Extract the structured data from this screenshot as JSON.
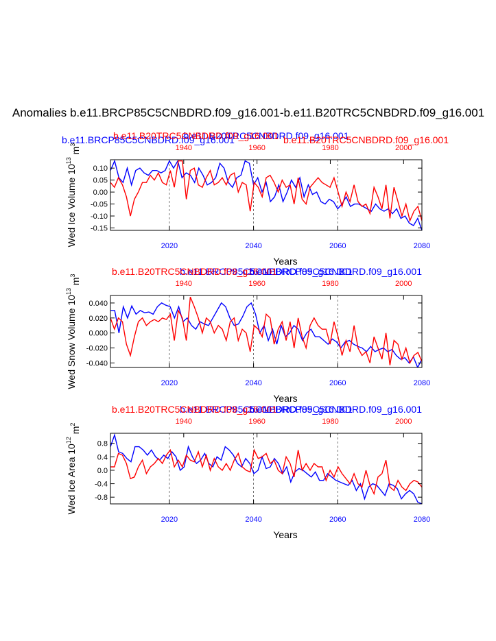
{
  "title": "Anomalies b.e11.BRCP85C5CNBDRD.f09_g16.001-b.e11.B20TRC5CNBDRD.f09_g16.001",
  "colors": {
    "rcp": "#0000ff",
    "hist": "#ff0000",
    "axis": "#000000"
  },
  "chart_data": [
    {
      "type": "line",
      "ylabel": "Wed Ice Volume 10",
      "ylabel_sup": "13",
      "ylabel_unit": " m",
      "ylabel_unit_sup": "3",
      "xlabel": "Years",
      "top_left_label": "b.e11.BRCP85C5CNBDRD.f09_g16.001",
      "top_center_label": "b.e11.B20TRC5CNBDRD.f09_g16.001",
      "top_right_label": "b.e11.B20TRC5CNBDRD.f09_g16.001",
      "bottom_axis": {
        "range": [
          2006,
          2080
        ],
        "ticks": [
          "2020",
          "2040",
          "2060",
          "2080"
        ]
      },
      "top_axis": {
        "range": [
          1920,
          2005
        ],
        "ticks": [
          "1940",
          "1960",
          "1980",
          "2000"
        ]
      },
      "ylim": [
        -0.16,
        0.135
      ],
      "yticks": [
        "0.10",
        "0.05",
        "0.00",
        "-0.05",
        "-0.10",
        "-0.15"
      ],
      "ytick_values": [
        0.1,
        0.05,
        0.0,
        -0.05,
        -0.1,
        -0.15
      ],
      "series": [
        {
          "values": [
            0.09,
            0.13,
            0.06,
            0.04,
            0.1,
            0.03,
            0.09,
            0.1,
            0.08,
            0.07,
            0.09,
            0.09,
            0.08,
            0.09,
            0.13,
            0.1,
            0.13,
            0.06,
            0.08,
            0.07,
            0.04,
            0.1,
            0.07,
            0.03,
            0.04,
            0.06,
            0.12,
            0.1,
            0.04,
            0.02,
            0.06,
            0.07,
            0.13,
            0.12,
            0.03,
            0.06,
            0.0,
            0.04,
            -0.04,
            -0.02,
            0.03,
            -0.04,
            0.0,
            0.05,
            0.02,
            0.06,
            -0.02,
            0.03,
            -0.01,
            0.0,
            -0.04,
            -0.05,
            -0.03,
            -0.04,
            -0.07,
            -0.05,
            -0.02,
            -0.06,
            -0.05,
            -0.05,
            -0.06,
            -0.07,
            -0.08,
            -0.05,
            -0.07,
            -0.08,
            -0.07,
            -0.09,
            -0.07,
            -0.11,
            -0.1,
            -0.13,
            -0.14,
            -0.11,
            -0.16
          ]
        },
        {
          "values": [
            0.04,
            0.02,
            0.06,
            0.03,
            -0.02,
            -0.1,
            -0.03,
            0.0,
            0.04,
            0.04,
            0.07,
            0.05,
            0.08,
            0.04,
            0.03,
            0.09,
            0.02,
            0.13,
            0.13,
            -0.03,
            0.09,
            0.1,
            0.03,
            0.02,
            0.06,
            0.09,
            0.03,
            0.04,
            0.06,
            0.03,
            0.07,
            0.08,
            0.0,
            0.04,
            0.03,
            -0.08,
            0.04,
            0.02,
            -0.02,
            0.06,
            0.07,
            0.04,
            0.0,
            0.05,
            0.02,
            0.03,
            -0.05,
            0.06,
            -0.03,
            -0.05,
            0.02,
            0.04,
            0.06,
            0.04,
            0.03,
            0.02,
            0.06,
            0.0,
            -0.06,
            0.0,
            -0.04,
            0.03,
            -0.04,
            -0.06,
            -0.05,
            -0.09,
            0.02,
            -0.02,
            -0.07,
            0.03,
            -0.11,
            0.02,
            -0.04,
            -0.1,
            -0.05,
            -0.12,
            -0.08,
            -0.06,
            -0.12
          ]
        }
      ]
    },
    {
      "type": "line",
      "ylabel": "Wed Snow Volume 10",
      "ylabel_sup": "13",
      "ylabel_unit": " m",
      "ylabel_unit_sup": "3",
      "xlabel": "Years",
      "top_left_label": "",
      "top_center_label": "b.e11.BRCP85C5CNBDRD.f09_g16.001",
      "top_right_label": "b.e11.B20TRC5CNBDRD.f09_g16.001",
      "bottom_axis": {
        "range": [
          2006,
          2080
        ],
        "ticks": [
          "2020",
          "2040",
          "2060",
          "2080"
        ]
      },
      "top_axis": {
        "range": [
          1920,
          2005
        ],
        "ticks": [
          "1940",
          "1960",
          "1980",
          "2000"
        ]
      },
      "ylim": [
        -0.046,
        0.05
      ],
      "yticks": [
        "0.040",
        "0.020",
        "0.000",
        "-0.020",
        "-0.040"
      ],
      "ytick_values": [
        0.04,
        0.02,
        0.0,
        -0.02,
        -0.04
      ],
      "series": [
        {
          "values": [
            0.03,
            0.03,
            0.0,
            0.035,
            0.02,
            0.036,
            0.025,
            0.03,
            0.027,
            0.028,
            0.025,
            0.035,
            0.04,
            0.037,
            0.035,
            0.02,
            0.035,
            0.015,
            0.02,
            0.01,
            0.005,
            0.015,
            0.012,
            0.01,
            0.02,
            0.03,
            0.04,
            0.035,
            0.02,
            0.01,
            0.012,
            0.022,
            0.035,
            0.04,
            0.025,
            0.0,
            0.01,
            -0.01,
            0.005,
            -0.015,
            0.01,
            -0.005,
            0.0,
            0.01,
            0.005,
            -0.01,
            0.0,
            0.005,
            -0.005,
            -0.005,
            -0.01,
            -0.015,
            -0.008,
            -0.012,
            -0.02,
            -0.012,
            -0.01,
            -0.015,
            -0.018,
            -0.02,
            -0.025,
            -0.018,
            -0.025,
            -0.022,
            -0.02,
            -0.025,
            -0.022,
            -0.03,
            -0.035,
            -0.033,
            -0.04,
            -0.032,
            -0.046,
            -0.035
          ]
        },
        {
          "values": [
            0.02,
            0.005,
            0.02,
            0.015,
            -0.015,
            -0.03,
            -0.005,
            0.015,
            0.02,
            0.01,
            0.015,
            0.018,
            0.015,
            0.02,
            0.018,
            0.025,
            -0.01,
            0.03,
            0.02,
            -0.01,
            0.048,
            0.035,
            0.02,
            0.0,
            0.02,
            0.015,
            0.0,
            0.01,
            0.005,
            -0.01,
            0.015,
            0.02,
            -0.01,
            0.005,
            0.0,
            -0.025,
            0.01,
            0.005,
            -0.005,
            0.025,
            0.02,
            -0.015,
            0.005,
            0.015,
            -0.01,
            0.015,
            -0.02,
            0.02,
            -0.005,
            -0.02,
            0.01,
            0.02,
            0.01,
            0.005,
            0.005,
            -0.015,
            0.015,
            -0.005,
            -0.03,
            -0.01,
            -0.025,
            0.01,
            -0.02,
            -0.03,
            -0.025,
            -0.04,
            -0.005,
            -0.02,
            -0.035,
            0.0,
            -0.043,
            -0.01,
            -0.015,
            -0.035,
            -0.02,
            -0.04,
            -0.03,
            -0.026,
            -0.038
          ]
        }
      ]
    },
    {
      "type": "line",
      "ylabel": "Wed Ice Area 10",
      "ylabel_sup": "12",
      "ylabel_unit": " m",
      "ylabel_unit_sup": "2",
      "xlabel": "Years",
      "top_left_label": "",
      "top_center_label": "b.e11.BRCP85C5CNBDRD.f09_g16.001",
      "top_right_label": "b.e11.B20TRC5CNBDRD.f09_g16.001",
      "bottom_axis": {
        "range": [
          2006,
          2080
        ],
        "ticks": [
          "2020",
          "2040",
          "2060",
          "2080"
        ]
      },
      "top_axis": {
        "range": [
          1920,
          2005
        ],
        "ticks": [
          "1940",
          "1960",
          "1980",
          "2000"
        ]
      },
      "ylim": [
        -1.0,
        1.1
      ],
      "yticks": [
        "0.8",
        "0.4",
        "0.0",
        "-0.4",
        "-0.8"
      ],
      "ytick_values": [
        0.8,
        0.4,
        0.0,
        -0.4,
        -0.8
      ],
      "series": [
        {
          "values": [
            0.7,
            1.05,
            0.55,
            0.5,
            0.35,
            0.25,
            0.7,
            0.7,
            0.6,
            0.45,
            0.6,
            0.4,
            0.3,
            0.45,
            0.35,
            0.55,
            0.4,
            0.0,
            0.1,
            0.7,
            0.4,
            0.2,
            0.3,
            0.5,
            0.2,
            0.1,
            0.4,
            0.3,
            0.7,
            0.6,
            0.45,
            0.2,
            0.1,
            0.35,
            0.2,
            -0.1,
            0.0,
            0.4,
            0.05,
            0.1,
            0.35,
            0.2,
            -0.1,
            0.1,
            -0.35,
            -0.05,
            0.05,
            0.0,
            -0.1,
            -0.2,
            -0.05,
            -0.3,
            -0.3,
            -0.1,
            -0.2,
            -0.3,
            -0.35,
            -0.4,
            -0.45,
            -0.3,
            -0.6,
            -0.4,
            -0.85,
            -0.5,
            -0.4,
            -0.45,
            -0.6,
            -0.75,
            -0.4,
            -0.45,
            -0.55,
            -0.85,
            -0.7,
            -0.6,
            -0.7,
            -0.95,
            -1.0
          ]
        },
        {
          "values": [
            0.1,
            0.1,
            0.5,
            0.45,
            0.2,
            -0.25,
            -0.2,
            0.1,
            0.3,
            -0.1,
            0.1,
            0.2,
            0.35,
            0.2,
            0.45,
            0.6,
            0.1,
            0.3,
            0.1,
            0.45,
            0.3,
            0.25,
            0.55,
            0.1,
            0.45,
            0.0,
            0.35,
            0.1,
            0.0,
            0.2,
            0.0,
            0.3,
            0.5,
            0.1,
            0.0,
            -0.05,
            0.6,
            0.35,
            0.4,
            0.5,
            0.2,
            0.3,
            0.0,
            -0.1,
            0.4,
            0.2,
            -0.2,
            0.6,
            0.0,
            0.2,
            0.0,
            0.2,
            0.1,
            0.1,
            -0.3,
            0.0,
            -0.2,
            0.1,
            -0.1,
            -0.25,
            -0.4,
            -0.1,
            -0.4,
            -0.5,
            0.0,
            -0.45,
            -0.7,
            -0.2,
            -0.1,
            0.3,
            -0.5,
            -0.6,
            -0.3,
            -0.5,
            -0.6,
            -0.4,
            -0.3,
            -0.35,
            -0.5
          ]
        }
      ]
    }
  ]
}
